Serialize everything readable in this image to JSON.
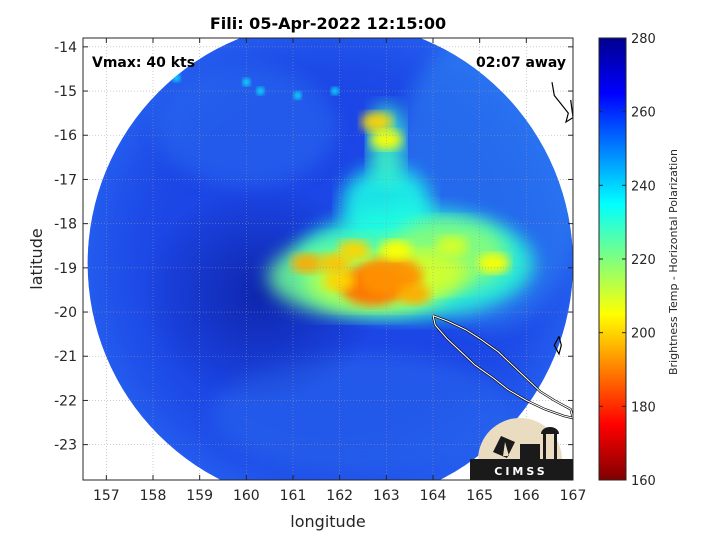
{
  "chart_data": {
    "type": "heatmap",
    "title": "Fili: 05-Apr-2022 12:15:00",
    "xlabel": "longitude",
    "ylabel": "latitude",
    "xlim": [
      156.5,
      167
    ],
    "ylim": [
      -23.8,
      -13.8
    ],
    "xticks": [
      157,
      158,
      159,
      160,
      161,
      162,
      163,
      164,
      165,
      166,
      167
    ],
    "yticks": [
      -14,
      -15,
      -16,
      -17,
      -18,
      -19,
      -20,
      -21,
      -22,
      -23
    ],
    "grid": true,
    "annotations": {
      "vmax": "Vmax: 40 kts",
      "away": "02:07 away"
    },
    "colorbar": {
      "label": "Brightness Temp - Horizontal Polarization",
      "range": [
        160,
        280
      ],
      "ticks": [
        160,
        180,
        200,
        220,
        240,
        260,
        280
      ],
      "colormap": "jet",
      "position": "right"
    },
    "storm_center": {
      "lon": 161.7,
      "lat": -19.1
    },
    "swath": {
      "center_lon": 161.8,
      "center_lat": -18.9,
      "radius_deg": 5.2
    },
    "cold_cores": [
      {
        "lon": 162.7,
        "lat": -19.4,
        "value": 188
      },
      {
        "lon": 163.1,
        "lat": -19.2,
        "value": 192
      },
      {
        "lon": 162.0,
        "lat": -19.3,
        "value": 200
      },
      {
        "lon": 161.3,
        "lat": -18.9,
        "value": 195
      },
      {
        "lon": 161.9,
        "lat": -18.9,
        "value": 198
      },
      {
        "lon": 162.3,
        "lat": -18.6,
        "value": 200
      },
      {
        "lon": 163.2,
        "lat": -18.6,
        "value": 205
      },
      {
        "lon": 163.6,
        "lat": -19.6,
        "value": 195
      },
      {
        "lon": 164.4,
        "lat": -18.5,
        "value": 210
      },
      {
        "lon": 165.3,
        "lat": -18.9,
        "value": 205
      },
      {
        "lon": 162.8,
        "lat": -15.7,
        "value": 200
      },
      {
        "lon": 163.0,
        "lat": -16.1,
        "value": 205
      }
    ],
    "coastlines": [
      "New Caledonia",
      "Vanuatu"
    ]
  },
  "logo": {
    "text": "CIMSS"
  }
}
